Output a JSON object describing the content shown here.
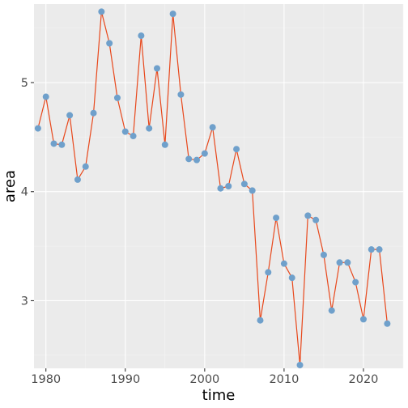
{
  "chart_data": {
    "type": "line",
    "xlabel": "time",
    "ylabel": "area",
    "xlim": [
      1978.5,
      2025.0
    ],
    "ylim": [
      2.38,
      5.72
    ],
    "x_ticks": [
      1980,
      1990,
      2000,
      2010,
      2020
    ],
    "y_ticks": [
      3,
      4,
      5
    ],
    "grid": true,
    "line_color": "#e8481c",
    "point_color": "#6fa0cb",
    "panel_background": "#ebebeb",
    "series": [
      {
        "x": [
          1979,
          1980,
          1981,
          1982,
          1983,
          1984,
          1985,
          1986,
          1987,
          1988,
          1989,
          1990,
          1991,
          1992,
          1993,
          1994,
          1995,
          1996,
          1997,
          1998,
          1999,
          2000,
          2001,
          2002,
          2003,
          2004,
          2005,
          2006,
          2007,
          2008,
          2009,
          2010,
          2011,
          2012,
          2013,
          2014,
          2015,
          2016,
          2017,
          2018,
          2019,
          2020,
          2021,
          2022,
          2023
        ],
        "values": [
          4.58,
          4.87,
          4.44,
          4.43,
          4.7,
          4.11,
          4.23,
          4.72,
          5.65,
          5.36,
          4.86,
          4.55,
          4.51,
          5.43,
          4.58,
          5.13,
          4.43,
          5.63,
          4.89,
          4.3,
          4.29,
          4.35,
          4.59,
          4.03,
          4.05,
          4.39,
          4.07,
          4.01,
          2.82,
          3.26,
          3.76,
          3.34,
          3.21,
          2.41,
          3.78,
          3.74,
          3.42,
          2.91,
          3.35,
          3.35,
          3.17,
          2.83,
          3.47,
          3.47,
          2.79
        ]
      }
    ]
  }
}
